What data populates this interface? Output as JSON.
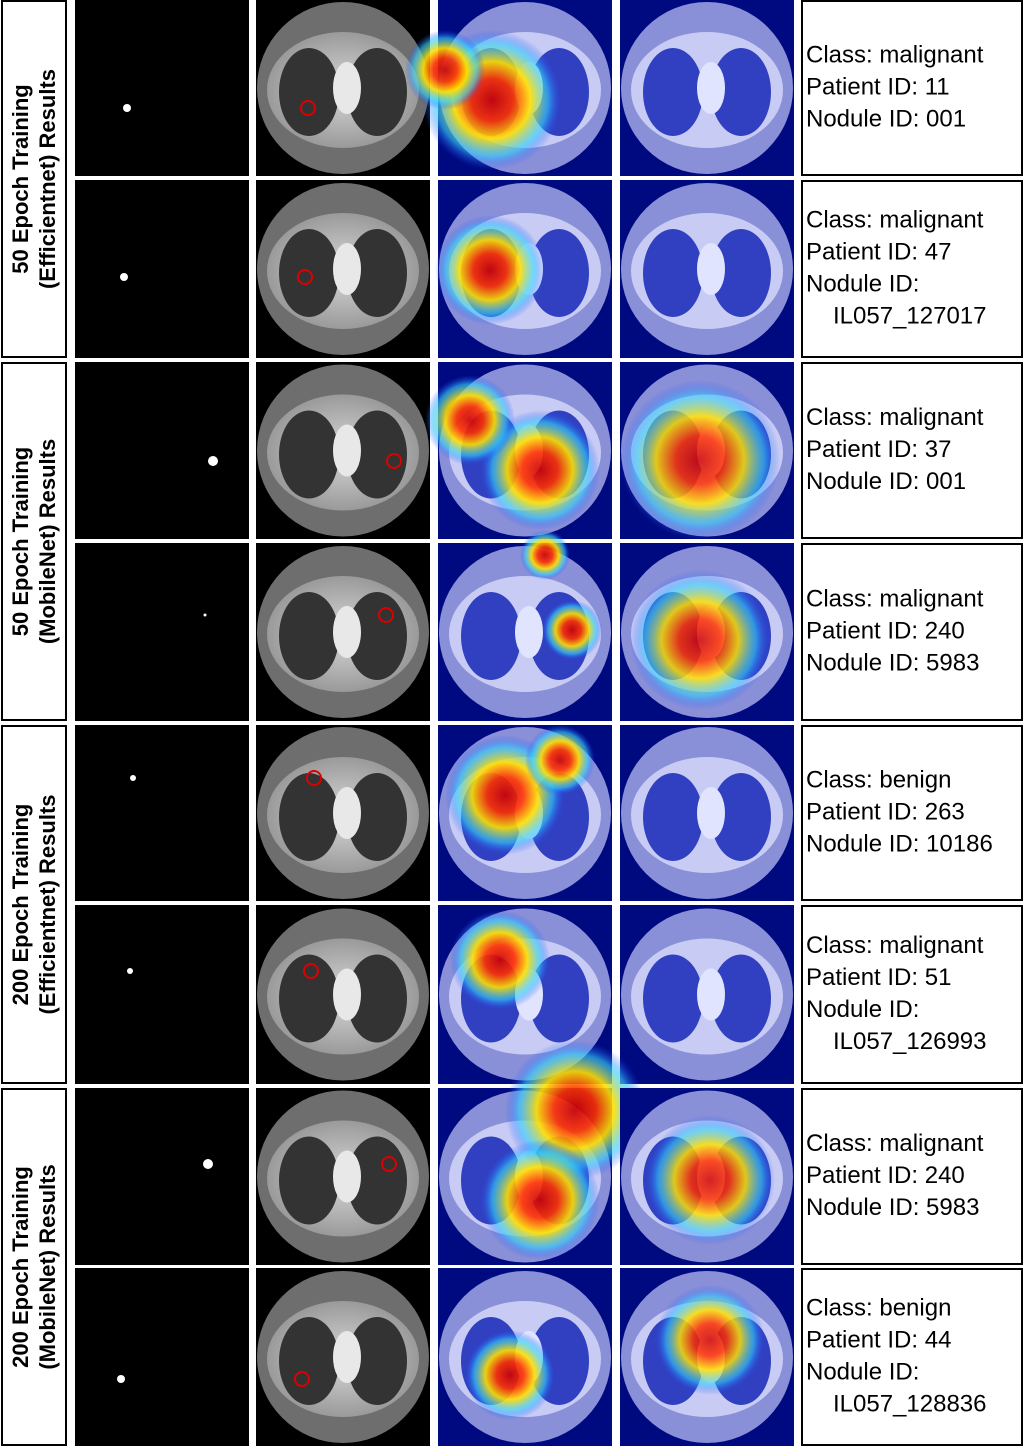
{
  "groups": [
    {
      "label": [
        "50 Epoch Training",
        "(Efficientnet) Results"
      ],
      "rows": [
        {
          "lines": [
            "Class: malignant",
            "Patient ID: 11",
            "Nodule ID: 001"
          ]
        },
        {
          "lines": [
            "Class: malignant",
            "Patient ID: 47",
            "Nodule ID:",
            "IL057_127017"
          ]
        }
      ]
    },
    {
      "label": [
        "50 Epoch Training",
        "(MobileNet) Results"
      ],
      "rows": [
        {
          "lines": [
            "Class: malignant",
            "Patient ID: 37",
            "Nodule ID: 001"
          ]
        },
        {
          "lines": [
            "Class: malignant",
            "Patient ID: 240",
            "Nodule ID: 5983"
          ]
        }
      ]
    },
    {
      "label": [
        "200 Epoch Training",
        "(Efficientnet) Results"
      ],
      "rows": [
        {
          "lines": [
            "Class: benign",
            "Patient ID: 263",
            "Nodule ID: 10186"
          ]
        },
        {
          "lines": [
            "Class: malignant",
            "Patient ID: 51",
            "Nodule ID:",
            "IL057_126993"
          ]
        }
      ]
    },
    {
      "label": [
        "200 Epoch Training",
        "(MobileNet) Results"
      ],
      "rows": [
        {
          "lines": [
            "Class: malignant",
            "Patient ID: 240",
            "Nodule ID: 5983"
          ]
        },
        {
          "lines": [
            "Class: benign",
            "Patient ID: 44",
            "Nodule ID:",
            "IL057_128836"
          ]
        }
      ]
    }
  ]
}
